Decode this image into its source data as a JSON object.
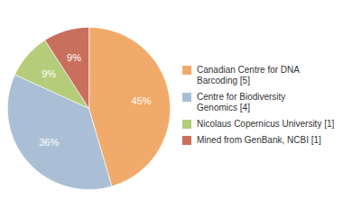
{
  "chart_data": {
    "type": "pie",
    "categories": [
      "Canadian Centre for DNA\nBarcoding [5]",
      "Centre for Biodiversity\nGenomics [4]",
      "Nicolaus Copernicus University [1]",
      "Mined from GenBank, NCBI [1]"
    ],
    "values": [
      45,
      36,
      9,
      9
    ],
    "value_labels": [
      "45%",
      "36%",
      "9%",
      "9%"
    ],
    "colors": [
      "#f2aa6b",
      "#aabfd6",
      "#b5cc7a",
      "#c96f5e"
    ],
    "data_labels": true,
    "legend": "right"
  }
}
